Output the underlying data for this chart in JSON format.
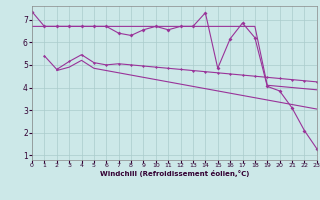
{
  "bg_color": "#cce8e8",
  "grid_color": "#aacccc",
  "line_color": "#993399",
  "xlabel": "Windchill (Refroidissement éolien,°C)",
  "xlim": [
    0,
    23
  ],
  "ylim": [
    0.8,
    7.6
  ],
  "xticks": [
    0,
    1,
    2,
    3,
    4,
    5,
    6,
    7,
    8,
    9,
    10,
    11,
    12,
    13,
    14,
    15,
    16,
    17,
    18,
    19,
    20,
    21,
    22,
    23
  ],
  "yticks": [
    1,
    2,
    3,
    4,
    5,
    6,
    7
  ],
  "line1_x": [
    0,
    1,
    2,
    3,
    4,
    5,
    6,
    7,
    8,
    9,
    10,
    11,
    12,
    13,
    14,
    15,
    16,
    17,
    18,
    19,
    20,
    21,
    22,
    23
  ],
  "line1_y": [
    7.35,
    6.7,
    6.7,
    6.7,
    6.7,
    6.7,
    6.7,
    6.4,
    6.3,
    6.55,
    6.7,
    6.55,
    6.7,
    6.7,
    7.3,
    4.85,
    6.15,
    6.85,
    6.2,
    4.05,
    3.85,
    3.1,
    2.1,
    1.3
  ],
  "line2_x": [
    0,
    1,
    2,
    3,
    4,
    5,
    6,
    7,
    8,
    9,
    10,
    11,
    12,
    13,
    14,
    15,
    16,
    17,
    18,
    19,
    20,
    21,
    22,
    23
  ],
  "line2_y": [
    6.7,
    6.7,
    6.7,
    6.7,
    6.7,
    6.7,
    6.7,
    6.7,
    6.7,
    6.7,
    6.7,
    6.7,
    6.7,
    6.7,
    6.7,
    6.7,
    6.7,
    6.7,
    6.7,
    4.1,
    4.05,
    4.0,
    3.95,
    3.9
  ],
  "line3_x": [
    1,
    2,
    3,
    4,
    5,
    6,
    7,
    8,
    9,
    10,
    11,
    12,
    13,
    14,
    15,
    16,
    17,
    18,
    19,
    20,
    21,
    22,
    23
  ],
  "line3_y": [
    5.4,
    4.8,
    5.15,
    5.45,
    5.1,
    5.0,
    5.05,
    5.0,
    4.95,
    4.9,
    4.85,
    4.8,
    4.75,
    4.7,
    4.65,
    4.6,
    4.55,
    4.5,
    4.45,
    4.4,
    4.35,
    4.3,
    4.25
  ],
  "line4_x": [
    2,
    3,
    4,
    5,
    6,
    7,
    8,
    9,
    10,
    11,
    12,
    13,
    14,
    15,
    16,
    17,
    18,
    19,
    20,
    21,
    22,
    23
  ],
  "line4_y": [
    4.75,
    4.9,
    5.2,
    4.85,
    4.75,
    4.65,
    4.55,
    4.45,
    4.35,
    4.25,
    4.15,
    4.05,
    3.95,
    3.85,
    3.75,
    3.65,
    3.55,
    3.45,
    3.35,
    3.25,
    3.15,
    3.05
  ]
}
